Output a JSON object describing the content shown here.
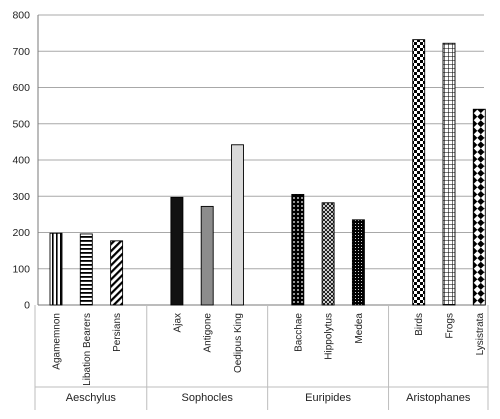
{
  "chart_data": {
    "type": "bar",
    "title": "",
    "xlabel": "",
    "ylabel": "",
    "ylim": [
      0,
      800
    ],
    "yticks": [
      0,
      100,
      200,
      300,
      400,
      500,
      600,
      700,
      800
    ],
    "grid": true,
    "legend": "none",
    "groups": [
      {
        "name": "Aeschylus",
        "bars": [
          {
            "label": "Agamemnon",
            "value": 198,
            "pattern": "vertical-stripes",
            "color": "#000000"
          },
          {
            "label": "Libation Bearers",
            "value": 196,
            "pattern": "horizontal-stripes",
            "color": "#000000"
          },
          {
            "label": "Persians",
            "value": 177,
            "pattern": "diagonal-stripes",
            "color": "#000000"
          }
        ]
      },
      {
        "name": "Sophocles",
        "bars": [
          {
            "label": "Ajax",
            "value": 297,
            "pattern": "solid",
            "color": "#111111"
          },
          {
            "label": "Antigone",
            "value": 272,
            "pattern": "solid",
            "color": "#8c8c8c"
          },
          {
            "label": "Oedipus King",
            "value": 442,
            "pattern": "solid",
            "color": "#d9d9d9"
          }
        ]
      },
      {
        "name": "Euripides",
        "bars": [
          {
            "label": "Bacchae",
            "value": 305,
            "pattern": "polka-dots",
            "color": "#000000"
          },
          {
            "label": "Hippolytus",
            "value": 282,
            "pattern": "diamond-lattice",
            "color": "#000000"
          },
          {
            "label": "Medea",
            "value": 235,
            "pattern": "dense-dots",
            "color": "#000000"
          }
        ]
      },
      {
        "name": "Aristophanes",
        "bars": [
          {
            "label": "Birds",
            "value": 732,
            "pattern": "checkerboard",
            "color": "#000000"
          },
          {
            "label": "Frogs",
            "value": 722,
            "pattern": "grid",
            "color": "#000000"
          },
          {
            "label": "Lysistrata",
            "value": 540,
            "pattern": "large-checker",
            "color": "#000000"
          }
        ]
      }
    ]
  }
}
